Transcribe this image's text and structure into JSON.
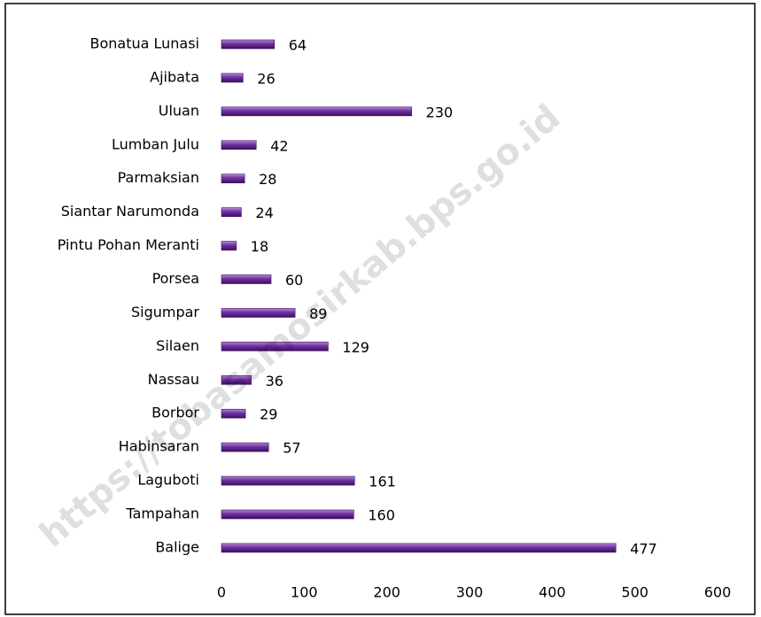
{
  "chart_data": {
    "type": "bar",
    "orientation": "horizontal",
    "categories": [
      "Bonatua Lunasi",
      "Ajibata",
      "Uluan",
      "Lumban Julu",
      "Parmaksian",
      "Siantar Narumonda",
      "Pintu Pohan Meranti",
      "Porsea",
      "Sigumpar",
      "Silaen",
      "Nassau",
      "Borbor",
      "Habinsaran",
      "Laguboti",
      "Tampahan",
      "Balige"
    ],
    "values": [
      64,
      26,
      230,
      42,
      28,
      24,
      18,
      60,
      89,
      129,
      36,
      29,
      57,
      161,
      160,
      477
    ],
    "color": "#7030a0",
    "xlim": [
      0,
      600
    ],
    "xticks": [
      0,
      100,
      200,
      300,
      400,
      500,
      600
    ],
    "grid": false,
    "watermark": "https://tobasamosirkab.bps.go.id"
  }
}
